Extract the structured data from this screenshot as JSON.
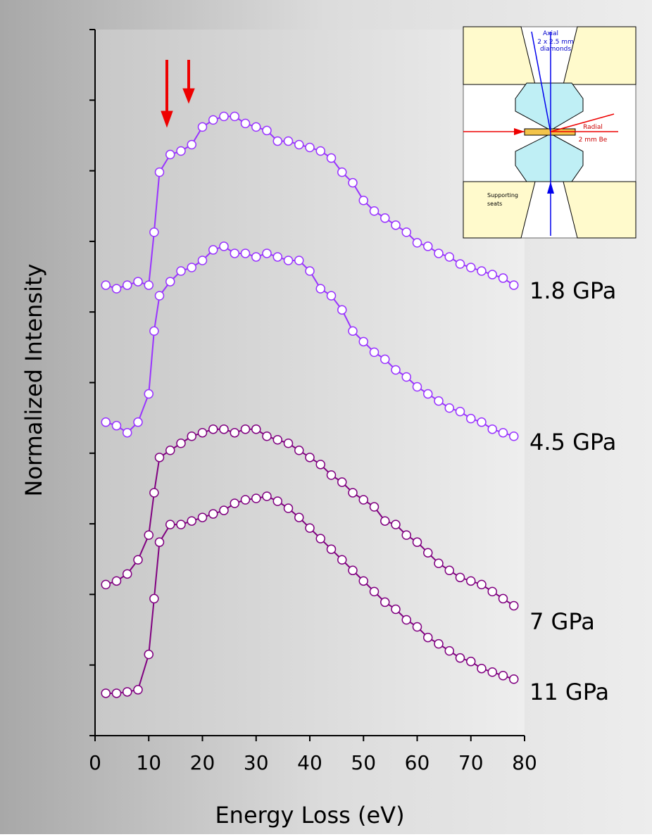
{
  "chart_data": {
    "type": "line",
    "xlabel": "Energy Loss (eV)",
    "ylabel": "Normalized Intensity",
    "xlim": [
      0,
      80
    ],
    "xticks": [
      0,
      10,
      20,
      30,
      40,
      50,
      60,
      70,
      80
    ],
    "ylim": [
      0,
      10
    ],
    "yticks": [
      0,
      1,
      2,
      3,
      4,
      5,
      6,
      7,
      8,
      9,
      10
    ],
    "x": [
      2,
      4,
      6,
      8,
      10,
      11,
      12,
      14,
      16,
      18,
      20,
      22,
      24,
      26,
      28,
      30,
      32,
      34,
      36,
      38,
      40,
      42,
      44,
      46,
      48,
      50,
      52,
      54,
      56,
      58,
      60,
      62,
      64,
      66,
      68,
      70,
      72,
      74,
      76,
      78
    ],
    "series": [
      {
        "name": "1.8 GPa",
        "color": "#9933ff",
        "values": [
          6.38,
          6.33,
          6.38,
          6.43,
          6.38,
          7.13,
          7.98,
          8.23,
          8.28,
          8.37,
          8.62,
          8.72,
          8.77,
          8.77,
          8.67,
          8.62,
          8.57,
          8.42,
          8.42,
          8.37,
          8.33,
          8.28,
          8.18,
          7.98,
          7.83,
          7.58,
          7.43,
          7.33,
          7.23,
          7.13,
          6.98,
          6.93,
          6.83,
          6.78,
          6.68,
          6.63,
          6.58,
          6.53,
          6.48,
          6.38
        ]
      },
      {
        "name": "4.5 GPa",
        "color": "#9933ff",
        "values": [
          4.44,
          4.39,
          4.29,
          4.44,
          4.84,
          5.73,
          6.23,
          6.43,
          6.58,
          6.63,
          6.73,
          6.88,
          6.93,
          6.83,
          6.83,
          6.78,
          6.83,
          6.78,
          6.73,
          6.73,
          6.58,
          6.33,
          6.23,
          6.03,
          5.73,
          5.58,
          5.43,
          5.33,
          5.18,
          5.08,
          4.94,
          4.84,
          4.74,
          4.64,
          4.59,
          4.49,
          4.44,
          4.34,
          4.29,
          4.24
        ]
      },
      {
        "name": "7 GPa",
        "color": "#800080",
        "values": [
          2.14,
          2.19,
          2.29,
          2.49,
          2.84,
          3.44,
          3.94,
          4.04,
          4.14,
          4.24,
          4.29,
          4.34,
          4.34,
          4.29,
          4.34,
          4.34,
          4.24,
          4.19,
          4.14,
          4.04,
          3.94,
          3.84,
          3.69,
          3.59,
          3.44,
          3.34,
          3.24,
          3.04,
          2.99,
          2.84,
          2.74,
          2.59,
          2.44,
          2.34,
          2.24,
          2.19,
          2.14,
          2.04,
          1.94,
          1.84
        ]
      },
      {
        "name": "11 GPa",
        "color": "#800080",
        "values": [
          0.6,
          0.6,
          0.62,
          0.65,
          1.15,
          1.94,
          2.74,
          2.99,
          2.99,
          3.04,
          3.09,
          3.14,
          3.19,
          3.29,
          3.34,
          3.36,
          3.39,
          3.32,
          3.22,
          3.09,
          2.94,
          2.79,
          2.64,
          2.49,
          2.34,
          2.19,
          2.04,
          1.89,
          1.79,
          1.64,
          1.54,
          1.39,
          1.3,
          1.2,
          1.1,
          1.05,
          0.95,
          0.9,
          0.85,
          0.8
        ]
      }
    ],
    "inset": {
      "axial": "Axial",
      "diamonds_size": "2 x 2.5 mm",
      "diamonds": "diamonds",
      "radial": "Radial",
      "be": "2 mm Be",
      "supporting": "Supporting",
      "seats": "seats"
    }
  }
}
